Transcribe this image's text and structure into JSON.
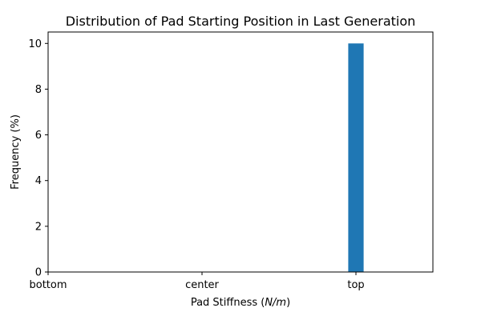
{
  "chart_data": {
    "type": "bar",
    "title": "Distribution of Pad Starting Position in Last Generation",
    "xlabel": "Pad Stiffness (",
    "xlabel_italic": "N/m",
    "xlabel_close": ")",
    "ylabel": "Frequency (%)",
    "categories": [
      "bottom",
      "center",
      "top"
    ],
    "values": [
      0,
      0,
      10
    ],
    "xlim": [
      0,
      2.5
    ],
    "ylim": [
      0,
      10.5
    ],
    "yticks": [
      0,
      2,
      4,
      6,
      8,
      10
    ],
    "grid": false,
    "legend": "none",
    "bar_color": "#1f77b4"
  }
}
